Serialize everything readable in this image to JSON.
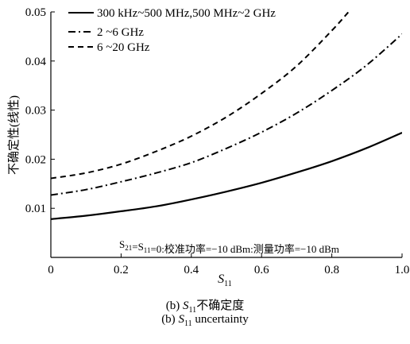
{
  "chart_data": {
    "type": "line",
    "ylabel": "不确定性(线性)",
    "xlabel": {
      "main": "S",
      "sub": "11"
    },
    "xlim": [
      0,
      1.0
    ],
    "ylim": [
      0,
      0.05
    ],
    "xticks": [
      0,
      0.2,
      0.4,
      0.6,
      0.8,
      1.0
    ],
    "xtick_labels": [
      "0",
      "0.2",
      "0.4",
      "0.6",
      "0.8",
      "1.0"
    ],
    "yticks": [
      0.01,
      0.02,
      0.03,
      0.04,
      0.05
    ],
    "ytick_labels": [
      "0.01",
      "0.02",
      "0.03",
      "0.04",
      "0.05"
    ],
    "legend_position": "top-left",
    "series": [
      {
        "name": "300 kHz~500 MHz,500 MHz~2 GHz",
        "dash": "solid",
        "x": [
          0,
          0.1,
          0.2,
          0.3,
          0.4,
          0.5,
          0.6,
          0.7,
          0.8,
          0.9,
          1.0
        ],
        "y": [
          0.0078,
          0.0085,
          0.0094,
          0.0104,
          0.0118,
          0.0134,
          0.0152,
          0.0173,
          0.0196,
          0.0223,
          0.0254
        ]
      },
      {
        "name": "2 ~6 GHz",
        "dash": "dashdot",
        "x": [
          0,
          0.1,
          0.2,
          0.3,
          0.4,
          0.5,
          0.6,
          0.7,
          0.8,
          0.9,
          1.0
        ],
        "y": [
          0.0127,
          0.0138,
          0.0154,
          0.0172,
          0.0193,
          0.0222,
          0.0255,
          0.0294,
          0.034,
          0.0392,
          0.0455
        ]
      },
      {
        "name": "6 ~20 GHz",
        "dash": "dashed",
        "x": [
          0,
          0.1,
          0.2,
          0.3,
          0.4,
          0.5,
          0.6,
          0.7,
          0.8,
          0.85
        ],
        "y": [
          0.0161,
          0.0172,
          0.019,
          0.0216,
          0.0247,
          0.0286,
          0.0334,
          0.039,
          0.0462,
          0.0502
        ]
      }
    ],
    "annotation": {
      "parts": [
        {
          "t": "S",
          "s": ""
        },
        {
          "t": "",
          "s": "21"
        },
        {
          "t": "=S",
          "s": ""
        },
        {
          "t": "",
          "s": "11"
        },
        {
          "t": "=0:校准功率=−10 dBm:测量功率=−10 dBm",
          "s": ""
        }
      ]
    }
  },
  "captions": {
    "line1": {
      "prefix": "(b) ",
      "var": "S",
      "sub": "11",
      "suffix": "不确定度"
    },
    "line2": {
      "prefix": "(b) ",
      "var": "S",
      "sub": "11",
      "suffix": " uncertainty"
    }
  }
}
